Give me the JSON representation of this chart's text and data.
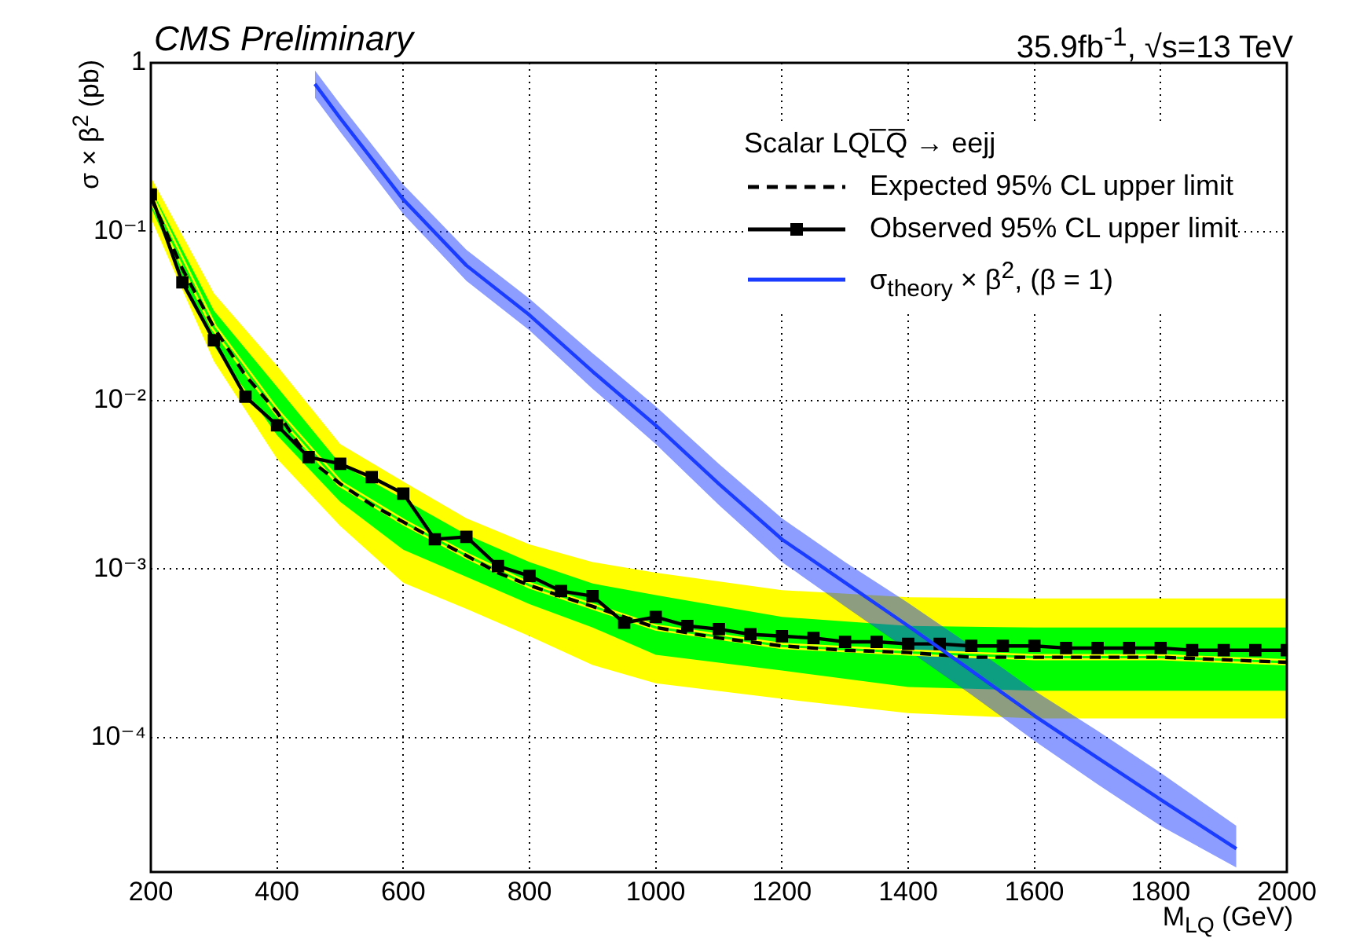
{
  "chart_data": {
    "type": "line",
    "title": "CMS Preliminary",
    "annotations": [
      "35.9fb$^{-1}$,  √s=13 TeV"
    ],
    "xlabel": "M$_{LQ}$ (GeV)",
    "ylabel": "σ × β$^{2}$ (pb)",
    "legend_title": "Scalar LQL̅Q̅ → eejj",
    "log": "y",
    "grid": true,
    "legend": "top right",
    "xlim": [
      200,
      2000
    ],
    "xticks": [
      200,
      400,
      600,
      800,
      1000,
      1200,
      1400,
      1600,
      1800,
      2000
    ],
    "ylim": [
      1.6e-05,
      1
    ],
    "yticks": [
      {
        "value": 0.0001,
        "label": "10⁻⁴"
      },
      {
        "value": 0.001,
        "label": "10⁻³"
      },
      {
        "value": 0.01,
        "label": "10⁻²"
      },
      {
        "value": 0.1,
        "label": "10⁻¹"
      },
      1
    ],
    "series": [
      {
        "type": "line",
        "color": "#ffff00",
        "x": [
          200,
          300,
          400,
          500,
          600,
          700,
          800,
          900,
          1000,
          1200,
          1400,
          1600,
          1800,
          2000
        ],
        "values": [
          0.16,
          0.027,
          0.0085,
          0.0032,
          0.0019,
          0.0012,
          0.0008,
          0.0006,
          0.00045,
          0.00035,
          0.00032,
          0.0003,
          0.0003,
          0.00028
        ],
        "upper": [
          0.21,
          0.043,
          0.016,
          0.0055,
          0.0033,
          0.002,
          0.0014,
          0.0011,
          0.00095,
          0.00075,
          0.00068,
          0.00067,
          0.00067,
          0.00067
        ],
        "lower": [
          0.12,
          0.017,
          0.0045,
          0.0018,
          0.00083,
          0.00058,
          0.0004,
          0.00027,
          0.00021,
          0.00017,
          0.00014,
          0.00013,
          0.00013,
          0.00013
        ]
      },
      {
        "type": "line",
        "color": "#00ff00",
        "x": [
          200,
          300,
          400,
          500,
          600,
          700,
          800,
          900,
          1000,
          1200,
          1400,
          1600,
          1800,
          2000
        ],
        "values": [
          0.16,
          0.027,
          0.0085,
          0.0032,
          0.0019,
          0.0012,
          0.0008,
          0.0006,
          0.00045,
          0.00035,
          0.00032,
          0.0003,
          0.0003,
          0.00028
        ],
        "upper": [
          0.18,
          0.034,
          0.012,
          0.0042,
          0.0026,
          0.0016,
          0.0011,
          0.00082,
          0.0007,
          0.00052,
          0.00046,
          0.00045,
          0.00045,
          0.00045
        ],
        "lower": [
          0.14,
          0.021,
          0.0062,
          0.0025,
          0.0013,
          0.0009,
          0.00062,
          0.00045,
          0.00031,
          0.00025,
          0.0002,
          0.00019,
          0.00019,
          0.00019
        ]
      },
      {
        "name": "Expected 95% CL upper limit",
        "color": "#000000",
        "line_style": "dashed",
        "marker": "none",
        "x": [
          200,
          250,
          300,
          350,
          400,
          450,
          500,
          550,
          600,
          650,
          700,
          750,
          800,
          850,
          900,
          950,
          1000,
          1100,
          1200,
          1300,
          1400,
          1500,
          1600,
          1700,
          1800,
          1900,
          2000
        ],
        "values": [
          0.16,
          0.06,
          0.027,
          0.014,
          0.0085,
          0.0045,
          0.0032,
          0.0024,
          0.0019,
          0.0015,
          0.0012,
          0.00095,
          0.0008,
          0.00069,
          0.0006,
          0.00052,
          0.00045,
          0.00039,
          0.00035,
          0.00033,
          0.00032,
          0.0003,
          0.0003,
          0.0003,
          0.0003,
          0.00029,
          0.00028
        ]
      },
      {
        "name": "Observed 95% CL upper limit",
        "color": "#000000",
        "line_style": "solid",
        "marker": "square",
        "x": [
          200,
          250,
          300,
          350,
          400,
          450,
          500,
          550,
          600,
          650,
          700,
          750,
          800,
          850,
          900,
          950,
          1000,
          1050,
          1100,
          1150,
          1200,
          1250,
          1300,
          1350,
          1400,
          1450,
          1500,
          1550,
          1600,
          1650,
          1700,
          1750,
          1800,
          1850,
          1900,
          1950,
          2000
        ],
        "values": [
          0.166,
          0.05,
          0.0227,
          0.0105,
          0.0071,
          0.0046,
          0.0042,
          0.0035,
          0.0028,
          0.0015,
          0.00155,
          0.00104,
          0.00091,
          0.00074,
          0.00069,
          0.00048,
          0.00052,
          0.00046,
          0.00044,
          0.00041,
          0.0004,
          0.00039,
          0.00037,
          0.00037,
          0.00036,
          0.00036,
          0.00035,
          0.00035,
          0.00035,
          0.00034,
          0.00034,
          0.00034,
          0.00034,
          0.00033,
          0.00033,
          0.00033,
          0.00033
        ]
      },
      {
        "name": "σ$_{theory}$ × β$^{2}$, (β = 1)",
        "color": "#1a3cff",
        "line_style": "solid",
        "marker": "none",
        "x": [
          460,
          500,
          600,
          700,
          800,
          900,
          1000,
          1100,
          1200,
          1300,
          1400,
          1500,
          1600,
          1700,
          1800,
          1920
        ],
        "values": [
          0.75,
          0.47,
          0.155,
          0.063,
          0.032,
          0.0148,
          0.0071,
          0.0032,
          0.0015,
          0.00083,
          0.00046,
          0.00025,
          0.000135,
          7.6e-05,
          4.3e-05,
          2.2e-05
        ],
        "upper": [
          0.9,
          0.57,
          0.19,
          0.078,
          0.04,
          0.019,
          0.0092,
          0.0042,
          0.002,
          0.0011,
          0.00063,
          0.00035,
          0.00019,
          0.00011,
          6.2e-05,
          3e-05
        ],
        "lower": [
          0.62,
          0.39,
          0.127,
          0.051,
          0.026,
          0.0117,
          0.0055,
          0.0024,
          0.0011,
          0.0006,
          0.00033,
          0.00018,
          9.6e-05,
          5.3e-05,
          3e-05,
          1.7e-05
        ]
      }
    ]
  }
}
